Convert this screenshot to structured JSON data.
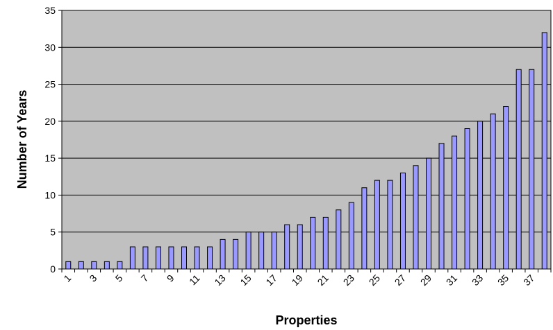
{
  "chart_data": {
    "type": "bar",
    "title": "",
    "xlabel": "Properties",
    "ylabel": "Number of Years",
    "ylim": [
      0,
      35
    ],
    "yticks": [
      0,
      5,
      10,
      15,
      20,
      25,
      30,
      35
    ],
    "grid": true,
    "legend": "none",
    "categories": [
      1,
      2,
      3,
      4,
      5,
      6,
      7,
      8,
      9,
      10,
      11,
      12,
      13,
      14,
      15,
      16,
      17,
      18,
      19,
      20,
      21,
      22,
      23,
      24,
      25,
      26,
      27,
      28,
      29,
      30,
      31,
      32,
      33,
      34,
      35,
      36,
      37,
      38
    ],
    "x_tick_labels": [
      1,
      3,
      5,
      7,
      9,
      11,
      13,
      15,
      17,
      19,
      21,
      23,
      25,
      27,
      29,
      31,
      33,
      35,
      37
    ],
    "values": [
      1,
      1,
      1,
      1,
      1,
      3,
      3,
      3,
      3,
      3,
      3,
      3,
      4,
      4,
      5,
      5,
      5,
      6,
      6,
      7,
      7,
      8,
      9,
      11,
      12,
      12,
      13,
      14,
      15,
      17,
      18,
      19,
      20,
      21,
      22,
      27,
      27,
      32
    ],
    "colors": {
      "plot_background": "#c0c0c0",
      "bar_fill": "#9999ff",
      "bar_stroke": "#000000",
      "gridline": "#000000"
    }
  }
}
